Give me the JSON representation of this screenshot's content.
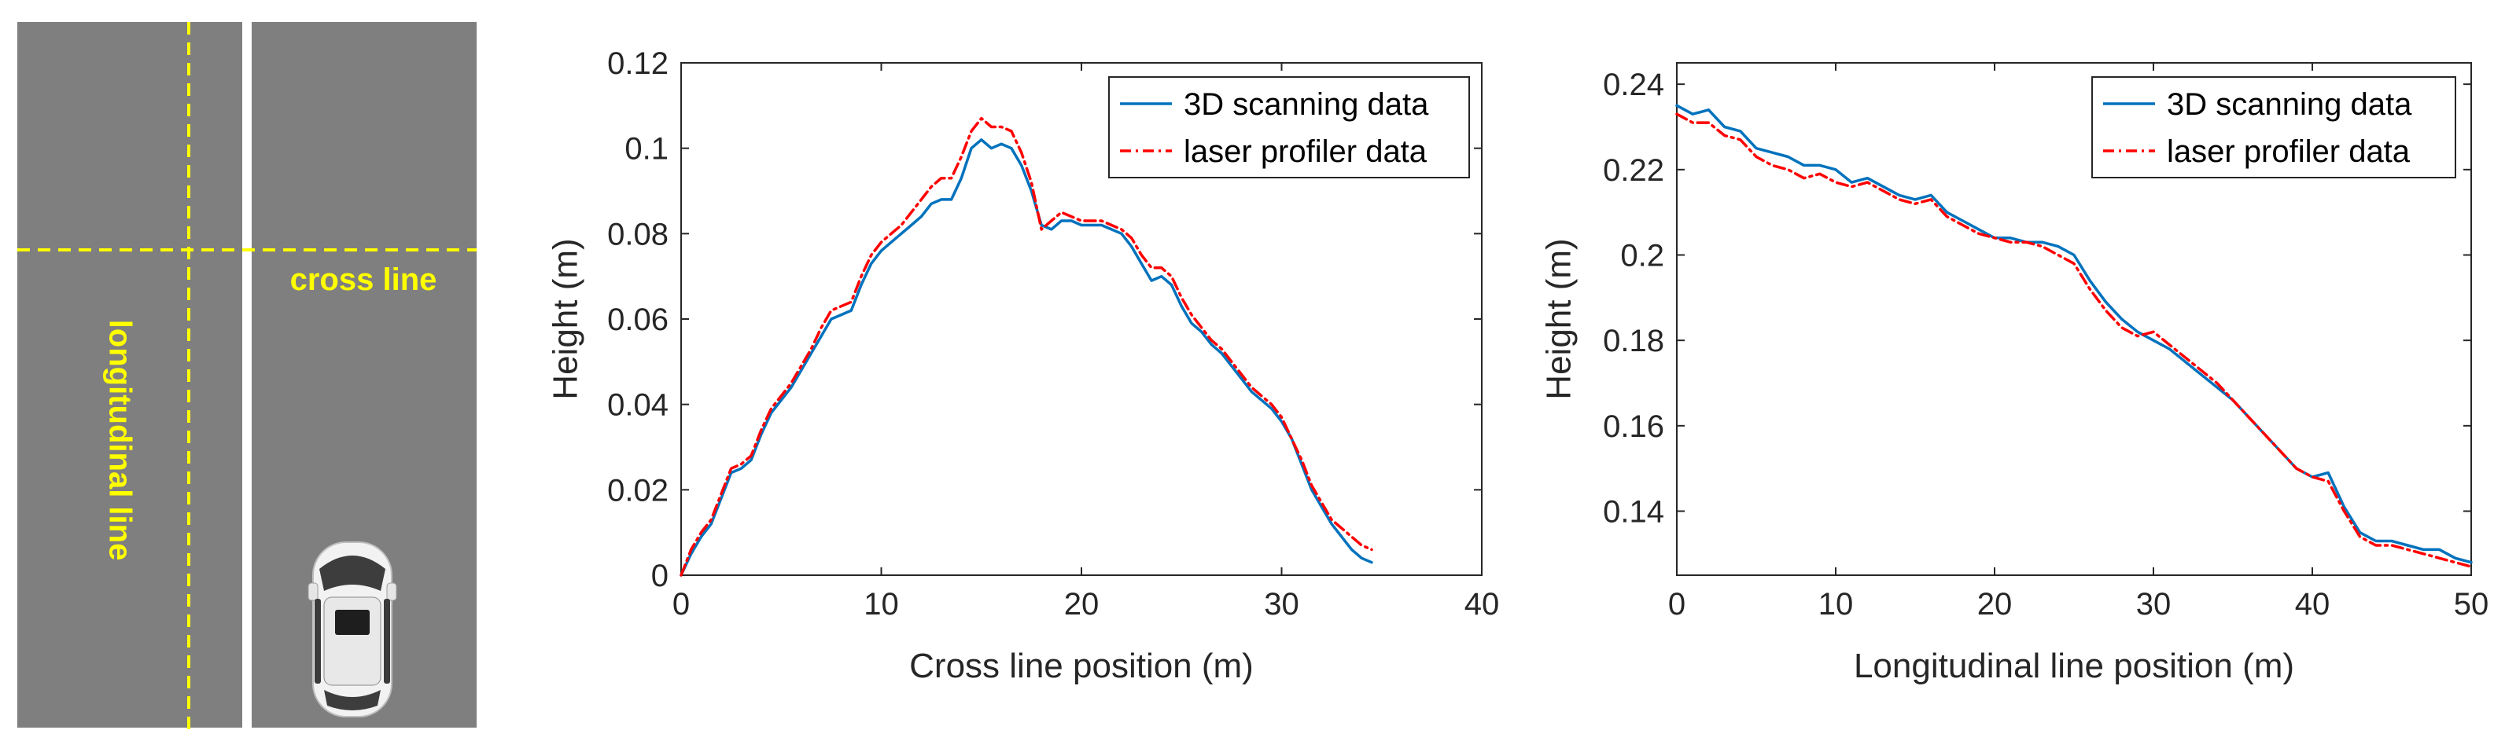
{
  "road_panel": {
    "longitudinal_label": "longitudinal line",
    "cross_label": "cross line",
    "road_color": "#7f7f7f",
    "line_color": "#ffff00",
    "divider_color": "#ffffff"
  },
  "chart_data": [
    {
      "type": "line",
      "xlabel": "Cross line position (m)",
      "ylabel": "Height (m)",
      "xlim": [
        0,
        40
      ],
      "ylim": [
        0,
        0.12
      ],
      "xticks": [
        "0",
        "10",
        "20",
        "30",
        "40"
      ],
      "yticks": [
        "0",
        "0.02",
        "0.04",
        "0.06",
        "0.08",
        "0.1",
        "0.12"
      ],
      "grid": false,
      "legend_position": "top-right",
      "series": [
        {
          "name": "3D scanning data",
          "color": "#0072bd",
          "style": "solid",
          "x": [
            0,
            0.5,
            1,
            1.5,
            2,
            2.5,
            3,
            3.5,
            4,
            4.5,
            5,
            5.5,
            6,
            6.5,
            7,
            7.5,
            8,
            8.5,
            9,
            9.5,
            10,
            10.5,
            11,
            11.5,
            12,
            12.5,
            13,
            13.5,
            14,
            14.5,
            15,
            15.5,
            16,
            16.5,
            17,
            17.5,
            18,
            18.5,
            19,
            19.5,
            20,
            20.5,
            21,
            21.5,
            22,
            22.5,
            23,
            23.5,
            24,
            24.5,
            25,
            25.5,
            26,
            26.5,
            27,
            27.5,
            28,
            28.5,
            29,
            29.5,
            30,
            30.5,
            31,
            31.5,
            32,
            32.5,
            33,
            33.5,
            34,
            34.5
          ],
          "y": [
            0.0,
            0.005,
            0.009,
            0.012,
            0.018,
            0.024,
            0.025,
            0.027,
            0.033,
            0.038,
            0.041,
            0.044,
            0.048,
            0.052,
            0.056,
            0.06,
            0.061,
            0.062,
            0.068,
            0.073,
            0.076,
            0.078,
            0.08,
            0.082,
            0.084,
            0.087,
            0.088,
            0.088,
            0.093,
            0.1,
            0.102,
            0.1,
            0.101,
            0.1,
            0.096,
            0.09,
            0.082,
            0.081,
            0.083,
            0.083,
            0.082,
            0.082,
            0.082,
            0.081,
            0.08,
            0.077,
            0.073,
            0.069,
            0.07,
            0.068,
            0.063,
            0.059,
            0.057,
            0.054,
            0.052,
            0.049,
            0.046,
            0.043,
            0.041,
            0.039,
            0.036,
            0.032,
            0.026,
            0.02,
            0.016,
            0.012,
            0.009,
            0.006,
            0.004,
            0.003
          ]
        },
        {
          "name": "laser profiler data",
          "color": "#ff0000",
          "style": "dashdot",
          "x": [
            0,
            0.5,
            1,
            1.5,
            2,
            2.5,
            3,
            3.5,
            4,
            4.5,
            5,
            5.5,
            6,
            6.5,
            7,
            7.5,
            8,
            8.5,
            9,
            9.5,
            10,
            10.5,
            11,
            11.5,
            12,
            12.5,
            13,
            13.5,
            14,
            14.5,
            15,
            15.5,
            16,
            16.5,
            17,
            17.5,
            18,
            18.5,
            19,
            19.5,
            20,
            20.5,
            21,
            21.5,
            22,
            22.5,
            23,
            23.5,
            24,
            24.5,
            25,
            25.5,
            26,
            26.5,
            27,
            27.5,
            28,
            28.5,
            29,
            29.5,
            30,
            30.5,
            31,
            31.5,
            32,
            32.5,
            33,
            33.5,
            34,
            34.5
          ],
          "y": [
            0.0,
            0.006,
            0.01,
            0.013,
            0.019,
            0.025,
            0.026,
            0.028,
            0.034,
            0.039,
            0.042,
            0.045,
            0.049,
            0.053,
            0.058,
            0.062,
            0.063,
            0.064,
            0.07,
            0.075,
            0.078,
            0.08,
            0.082,
            0.085,
            0.088,
            0.091,
            0.093,
            0.093,
            0.098,
            0.104,
            0.107,
            0.105,
            0.105,
            0.104,
            0.099,
            0.092,
            0.081,
            0.083,
            0.085,
            0.084,
            0.083,
            0.083,
            0.083,
            0.082,
            0.081,
            0.079,
            0.075,
            0.072,
            0.072,
            0.07,
            0.065,
            0.061,
            0.058,
            0.055,
            0.053,
            0.05,
            0.047,
            0.044,
            0.042,
            0.04,
            0.037,
            0.032,
            0.027,
            0.021,
            0.017,
            0.013,
            0.011,
            0.009,
            0.007,
            0.006
          ]
        }
      ]
    },
    {
      "type": "line",
      "xlabel": "Longitudinal line position (m)",
      "ylabel": "Height (m)",
      "xlim": [
        0,
        50
      ],
      "ylim": [
        0.125,
        0.245
      ],
      "xticks": [
        "0",
        "10",
        "20",
        "30",
        "40",
        "50"
      ],
      "yticks": [
        "0.14",
        "0.16",
        "0.18",
        "0.2",
        "0.22",
        "0.24"
      ],
      "grid": false,
      "legend_position": "top-right",
      "series": [
        {
          "name": "3D scanning data",
          "color": "#0072bd",
          "style": "solid",
          "x": [
            0,
            1,
            2,
            3,
            4,
            5,
            6,
            7,
            8,
            9,
            10,
            11,
            12,
            13,
            14,
            15,
            16,
            17,
            18,
            19,
            20,
            21,
            22,
            23,
            24,
            25,
            26,
            27,
            28,
            29,
            30,
            31,
            32,
            33,
            34,
            35,
            36,
            37,
            38,
            39,
            40,
            41,
            42,
            43,
            44,
            45,
            46,
            47,
            48,
            49,
            50
          ],
          "y": [
            0.235,
            0.233,
            0.234,
            0.23,
            0.229,
            0.225,
            0.224,
            0.223,
            0.221,
            0.221,
            0.22,
            0.217,
            0.218,
            0.216,
            0.214,
            0.213,
            0.214,
            0.21,
            0.208,
            0.206,
            0.204,
            0.204,
            0.203,
            0.203,
            0.202,
            0.2,
            0.194,
            0.189,
            0.185,
            0.182,
            0.18,
            0.178,
            0.175,
            0.172,
            0.169,
            0.166,
            0.162,
            0.158,
            0.154,
            0.15,
            0.148,
            0.149,
            0.141,
            0.135,
            0.133,
            0.133,
            0.132,
            0.131,
            0.131,
            0.129,
            0.128
          ]
        },
        {
          "name": "laser profiler data",
          "color": "#ff0000",
          "style": "dashdot",
          "x": [
            0,
            1,
            2,
            3,
            4,
            5,
            6,
            7,
            8,
            9,
            10,
            11,
            12,
            13,
            14,
            15,
            16,
            17,
            18,
            19,
            20,
            21,
            22,
            23,
            24,
            25,
            26,
            27,
            28,
            29,
            30,
            31,
            32,
            33,
            34,
            35,
            36,
            37,
            38,
            39,
            40,
            41,
            42,
            43,
            44,
            45,
            46,
            47,
            48,
            49,
            50
          ],
          "y": [
            0.233,
            0.231,
            0.231,
            0.228,
            0.227,
            0.223,
            0.221,
            0.22,
            0.218,
            0.219,
            0.217,
            0.216,
            0.217,
            0.215,
            0.213,
            0.212,
            0.213,
            0.209,
            0.207,
            0.205,
            0.204,
            0.203,
            0.203,
            0.202,
            0.2,
            0.198,
            0.192,
            0.187,
            0.183,
            0.181,
            0.182,
            0.179,
            0.176,
            0.173,
            0.17,
            0.166,
            0.162,
            0.158,
            0.154,
            0.15,
            0.148,
            0.147,
            0.14,
            0.134,
            0.132,
            0.132,
            0.131,
            0.13,
            0.129,
            0.128,
            0.127
          ]
        }
      ]
    }
  ]
}
